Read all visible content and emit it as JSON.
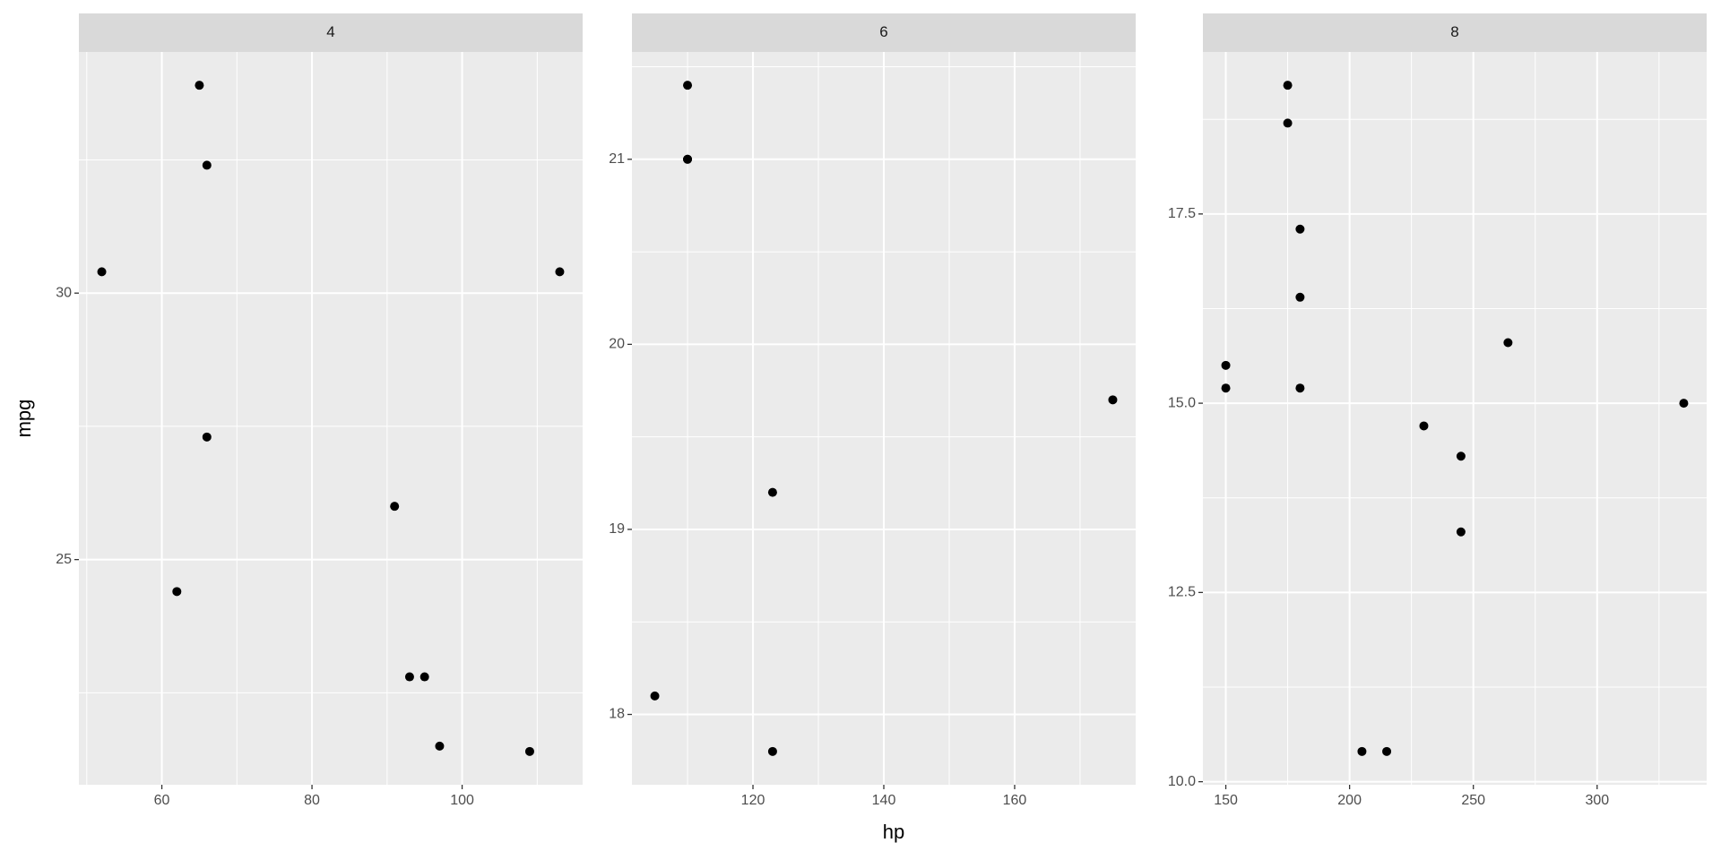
{
  "chart_data": [
    {
      "type": "scatter",
      "title": "4",
      "y_label": "mpg",
      "color": "#000000",
      "grid": true,
      "x": [
        93,
        62,
        95,
        66,
        52,
        65,
        97,
        66,
        91,
        113,
        109
      ],
      "y": [
        22.8,
        24.4,
        22.8,
        32.4,
        30.4,
        33.9,
        21.5,
        27.3,
        26.0,
        30.4,
        21.4
      ],
      "xlim": [
        48.95,
        116.05
      ],
      "ylim": [
        20.775,
        34.525
      ],
      "xticks": [
        60,
        80,
        100
      ],
      "yticks": [
        25,
        30
      ]
    },
    {
      "type": "scatter",
      "title": "6",
      "x_label": "hp",
      "color": "#000000",
      "grid": true,
      "x": [
        110,
        110,
        110,
        105,
        123,
        123,
        175
      ],
      "y": [
        21.0,
        21.0,
        21.4,
        18.1,
        19.2,
        17.8,
        19.7
      ],
      "xlim": [
        101.5,
        178.5
      ],
      "ylim": [
        17.62,
        21.58
      ],
      "xticks": [
        120,
        140,
        160
      ],
      "yticks": [
        18,
        19,
        20,
        21
      ]
    },
    {
      "type": "scatter",
      "title": "8",
      "color": "#000000",
      "grid": true,
      "x": [
        175,
        245,
        180,
        180,
        180,
        205,
        215,
        230,
        150,
        150,
        245,
        175,
        264,
        335
      ],
      "y": [
        18.7,
        14.3,
        16.4,
        17.3,
        15.2,
        10.4,
        10.4,
        14.7,
        15.5,
        15.2,
        13.3,
        19.2,
        15.8,
        15.0
      ],
      "xlim": [
        140.75,
        344.25
      ],
      "ylim": [
        9.96,
        19.64
      ],
      "xticks": [
        150,
        200,
        250,
        300
      ],
      "yticks": [
        {
          "value": 10,
          "label": "10.0"
        },
        {
          "value": 12.5,
          "label": "12.5"
        },
        {
          "value": 15,
          "label": "15.0"
        },
        {
          "value": 17.5,
          "label": "17.5"
        }
      ]
    }
  ]
}
